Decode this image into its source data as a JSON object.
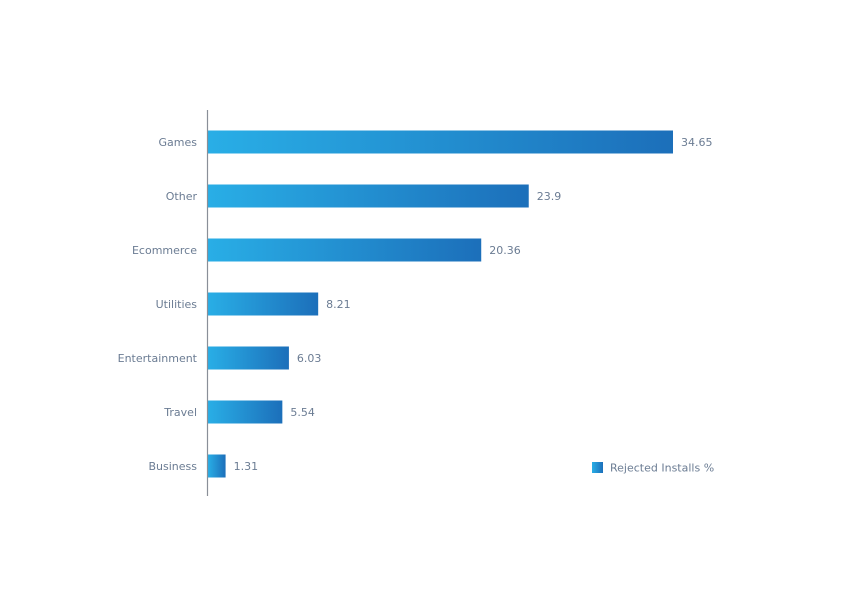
{
  "chart_data": {
    "type": "bar",
    "orientation": "horizontal",
    "categories": [
      "Games",
      "Other",
      "Ecommerce",
      "Utilities",
      "Entertainment",
      "Travel",
      "Business"
    ],
    "series": [
      {
        "name": "Rejected Installs %",
        "values": [
          34.65,
          23.9,
          20.36,
          8.21,
          6.03,
          5.54,
          1.31
        ]
      }
    ],
    "value_labels": [
      "34.65",
      "23.9",
      "20.36",
      "8.21",
      "6.03",
      "5.54",
      "1.31"
    ],
    "xlim": [
      0,
      40
    ],
    "grid": false,
    "legend_position": "bottom-right",
    "colors": {
      "bar_start": "#29aee6",
      "bar_end": "#1c6fba",
      "axis": "#8a8f98",
      "text": "#6b7c93"
    }
  }
}
